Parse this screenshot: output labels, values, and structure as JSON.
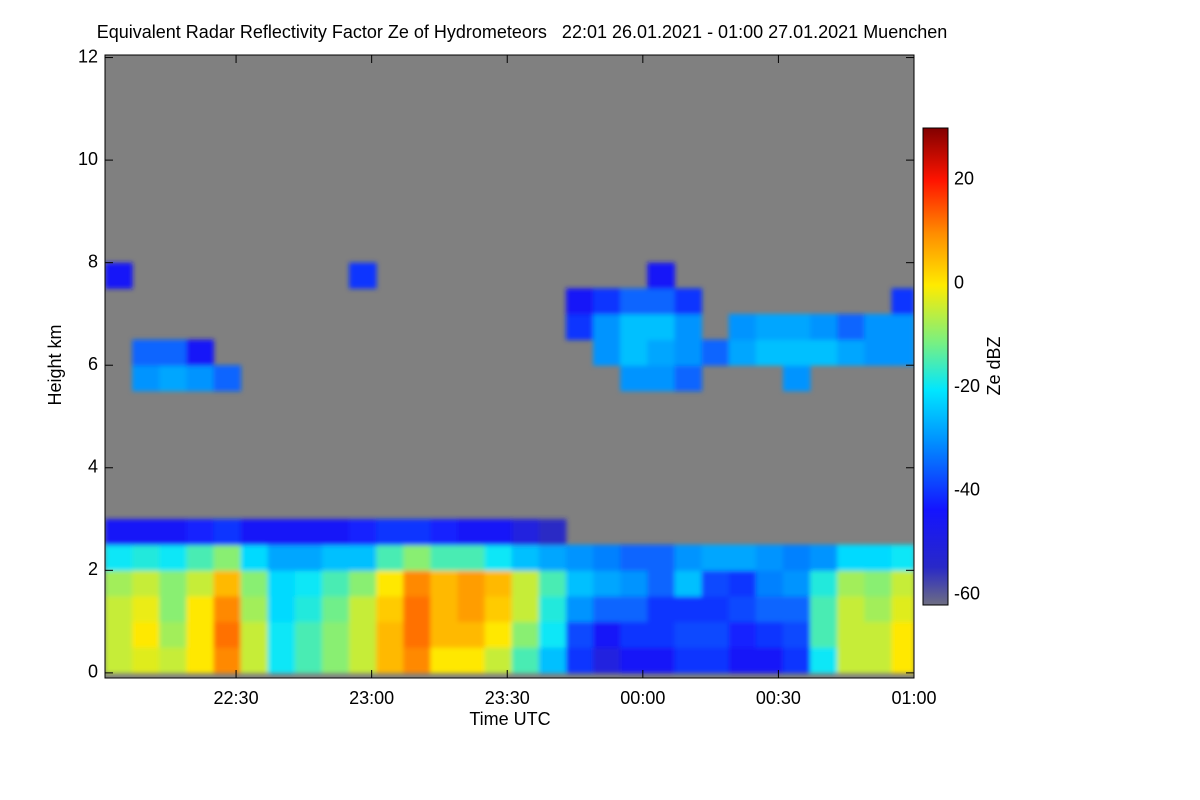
{
  "chart_data": {
    "type": "heatmap",
    "title": "Equivalent Radar Reflectivity Factor Ze of Hydrometeors   22:01 26.01.2021 - 01:00 27.01.2021 Muenchen",
    "x_label": "Time UTC",
    "y_label": "Height km",
    "colorbar_label": "Ze dBZ",
    "missing_color": "#808080",
    "xlim": [
      1321,
      1500
    ],
    "xticks": [
      {
        "value": 1350,
        "label": "22:30"
      },
      {
        "value": 1380,
        "label": "23:00"
      },
      {
        "value": 1410,
        "label": "23:30"
      },
      {
        "value": 1440,
        "label": "00:00"
      },
      {
        "value": 1470,
        "label": "00:30"
      },
      {
        "value": 1500,
        "label": "01:00"
      }
    ],
    "ylim": [
      -0.1,
      12.05
    ],
    "yticks": [
      0,
      2,
      4,
      6,
      8,
      10,
      12
    ],
    "zlim": [
      -62,
      30
    ],
    "zticks": [
      -60,
      -40,
      -20,
      0,
      20
    ],
    "x": [
      1321,
      1327,
      1333,
      1339,
      1345,
      1351,
      1357,
      1363,
      1369,
      1375,
      1381,
      1387,
      1393,
      1399,
      1405,
      1411,
      1417,
      1423,
      1429,
      1435,
      1441,
      1447,
      1453,
      1459,
      1465,
      1471,
      1477,
      1483,
      1489,
      1495
    ],
    "y": [
      0,
      0.5,
      1,
      1.5,
      2,
      2.5,
      3,
      3.5,
      4,
      4.5,
      5,
      5.5,
      6,
      6.5,
      7,
      7.5,
      8,
      8.5,
      9,
      9.5,
      10,
      10.5,
      11,
      11.5
    ],
    "z": [
      [
        -5,
        -3,
        -5,
        0,
        10,
        -5,
        -20,
        -15,
        -10,
        -5,
        5,
        10,
        0,
        0,
        -5,
        -15,
        -25,
        -40,
        -50,
        -45,
        -45,
        -40,
        -40,
        -45,
        -45,
        -40,
        -20,
        -5,
        -5,
        0
      ],
      [
        -5,
        0,
        -8,
        0,
        12,
        -5,
        -20,
        -15,
        -10,
        -5,
        5,
        12,
        5,
        5,
        0,
        -10,
        -20,
        -38,
        -45,
        -40,
        -40,
        -38,
        -38,
        -42,
        -40,
        -38,
        -15,
        -5,
        -5,
        0
      ],
      [
        -5,
        -2,
        -10,
        0,
        10,
        -8,
        -22,
        -18,
        -12,
        -5,
        3,
        12,
        5,
        8,
        3,
        -5,
        -18,
        -30,
        -35,
        -35,
        -40,
        -40,
        -40,
        -38,
        -35,
        -35,
        -15,
        -5,
        -8,
        -3
      ],
      [
        -8,
        -5,
        -10,
        -5,
        5,
        -10,
        -22,
        -20,
        -15,
        -10,
        0,
        10,
        5,
        8,
        5,
        -5,
        -15,
        -25,
        -28,
        -30,
        -35,
        -25,
        -38,
        -40,
        -32,
        -30,
        -18,
        -8,
        -10,
        -5
      ],
      [
        -20,
        -18,
        -20,
        -15,
        -10,
        -22,
        -28,
        -28,
        -25,
        -25,
        -15,
        -10,
        -15,
        -15,
        -20,
        -25,
        -28,
        -30,
        -32,
        -35,
        -35,
        -30,
        -28,
        -28,
        -30,
        -32,
        -30,
        -22,
        -22,
        -20
      ],
      [
        -45,
        -45,
        -45,
        -42,
        -40,
        -45,
        -45,
        -45,
        -45,
        -42,
        -40,
        -40,
        -42,
        -45,
        -45,
        -50,
        -55,
        null,
        null,
        null,
        null,
        null,
        null,
        null,
        null,
        null,
        null,
        null,
        null,
        null
      ],
      [
        null,
        null,
        null,
        null,
        null,
        null,
        null,
        null,
        null,
        null,
        null,
        null,
        null,
        null,
        null,
        null,
        null,
        null,
        null,
        null,
        null,
        null,
        null,
        null,
        null,
        null,
        null,
        null,
        null,
        null
      ],
      [
        null,
        null,
        null,
        null,
        null,
        null,
        null,
        null,
        null,
        null,
        null,
        null,
        null,
        null,
        null,
        null,
        null,
        null,
        null,
        null,
        null,
        null,
        null,
        null,
        null,
        null,
        null,
        null,
        null,
        null
      ],
      [
        null,
        null,
        null,
        null,
        null,
        null,
        null,
        null,
        null,
        null,
        null,
        null,
        null,
        null,
        null,
        null,
        null,
        null,
        null,
        null,
        null,
        null,
        null,
        null,
        null,
        null,
        null,
        null,
        null,
        null
      ],
      [
        null,
        null,
        null,
        null,
        null,
        null,
        null,
        null,
        null,
        null,
        null,
        null,
        null,
        null,
        null,
        null,
        null,
        null,
        null,
        null,
        null,
        null,
        null,
        null,
        null,
        null,
        null,
        null,
        null,
        null
      ],
      [
        null,
        null,
        null,
        null,
        null,
        null,
        null,
        null,
        null,
        null,
        null,
        null,
        null,
        null,
        null,
        null,
        null,
        null,
        null,
        null,
        null,
        null,
        null,
        null,
        null,
        null,
        null,
        null,
        null,
        null
      ],
      [
        null,
        -30,
        -28,
        -30,
        -35,
        null,
        null,
        null,
        null,
        null,
        null,
        null,
        null,
        null,
        null,
        null,
        null,
        null,
        null,
        -30,
        -30,
        -35,
        null,
        null,
        null,
        -30,
        null,
        null,
        null,
        null
      ],
      [
        null,
        -35,
        -35,
        -45,
        null,
        null,
        null,
        null,
        null,
        null,
        null,
        null,
        null,
        null,
        null,
        null,
        null,
        null,
        -30,
        -25,
        -28,
        -30,
        -35,
        -28,
        -25,
        -25,
        -25,
        -28,
        -30,
        -30
      ],
      [
        null,
        null,
        null,
        null,
        null,
        null,
        null,
        null,
        null,
        null,
        null,
        null,
        null,
        null,
        null,
        null,
        null,
        -40,
        -30,
        -25,
        -25,
        -30,
        null,
        -30,
        -28,
        -28,
        -30,
        -35,
        -30,
        -30
      ],
      [
        null,
        null,
        null,
        null,
        null,
        null,
        null,
        null,
        null,
        null,
        null,
        null,
        null,
        null,
        null,
        null,
        null,
        -45,
        -40,
        -35,
        -35,
        -40,
        null,
        null,
        null,
        null,
        null,
        null,
        null,
        -40
      ],
      [
        -45,
        null,
        null,
        null,
        null,
        null,
        null,
        null,
        null,
        -40,
        null,
        null,
        null,
        null,
        null,
        null,
        null,
        null,
        null,
        null,
        -45,
        null,
        null,
        null,
        null,
        null,
        null,
        null,
        null,
        null
      ],
      [
        null,
        null,
        null,
        null,
        null,
        null,
        null,
        null,
        null,
        null,
        null,
        null,
        null,
        null,
        null,
        null,
        null,
        null,
        null,
        null,
        null,
        null,
        null,
        null,
        null,
        null,
        null,
        null,
        null,
        null
      ],
      [
        null,
        null,
        null,
        null,
        null,
        null,
        null,
        null,
        null,
        null,
        null,
        null,
        null,
        null,
        null,
        null,
        null,
        null,
        null,
        null,
        null,
        null,
        null,
        null,
        null,
        null,
        null,
        null,
        null,
        null
      ],
      [
        null,
        null,
        null,
        null,
        null,
        null,
        null,
        null,
        null,
        null,
        null,
        null,
        null,
        null,
        null,
        null,
        null,
        null,
        null,
        null,
        null,
        null,
        null,
        null,
        null,
        null,
        null,
        null,
        null,
        null
      ],
      [
        null,
        null,
        null,
        null,
        null,
        null,
        null,
        null,
        null,
        null,
        null,
        null,
        null,
        null,
        null,
        null,
        null,
        null,
        null,
        null,
        null,
        null,
        null,
        null,
        null,
        null,
        null,
        null,
        null,
        null
      ],
      [
        null,
        null,
        null,
        null,
        null,
        null,
        null,
        null,
        null,
        null,
        null,
        null,
        null,
        null,
        null,
        null,
        null,
        null,
        null,
        null,
        null,
        null,
        null,
        null,
        null,
        null,
        null,
        null,
        null,
        null
      ],
      [
        null,
        null,
        null,
        null,
        null,
        null,
        null,
        null,
        null,
        null,
        null,
        null,
        null,
        null,
        null,
        null,
        null,
        null,
        null,
        null,
        null,
        null,
        null,
        null,
        null,
        null,
        null,
        null,
        null,
        null
      ],
      [
        null,
        null,
        null,
        null,
        null,
        null,
        null,
        null,
        null,
        null,
        null,
        null,
        null,
        null,
        null,
        null,
        null,
        null,
        null,
        null,
        null,
        null,
        null,
        null,
        null,
        null,
        null,
        null,
        null,
        null
      ],
      [
        null,
        null,
        null,
        null,
        null,
        null,
        null,
        null,
        null,
        null,
        null,
        null,
        null,
        null,
        null,
        null,
        null,
        null,
        null,
        null,
        null,
        null,
        null,
        null,
        null,
        null,
        null,
        null,
        null,
        null
      ]
    ]
  }
}
